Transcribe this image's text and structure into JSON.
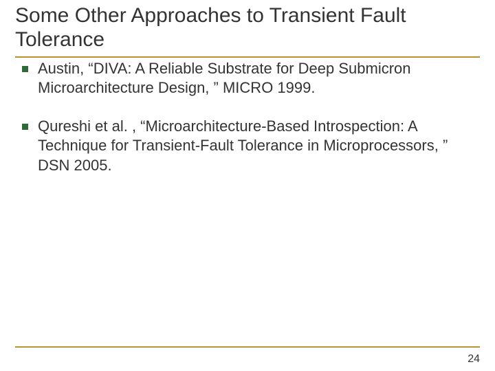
{
  "colors": {
    "accent": "#b8942e",
    "bullet": "#2e6a3a",
    "text": "#333333",
    "background": "#ffffff"
  },
  "title": "Some Other Approaches to Transient Fault Tolerance",
  "bullets": [
    "Austin, “DIVA: A Reliable Substrate for Deep Submicron Microarchitecture Design, ” MICRO 1999.",
    "Qureshi et al. , “Microarchitecture-Based Introspection: A Technique for Transient-Fault Tolerance in Microprocessors, ” DSN 2005."
  ],
  "page_number": "24",
  "fontsizes": {
    "title": 30,
    "body": 22,
    "pagenum": 16
  }
}
